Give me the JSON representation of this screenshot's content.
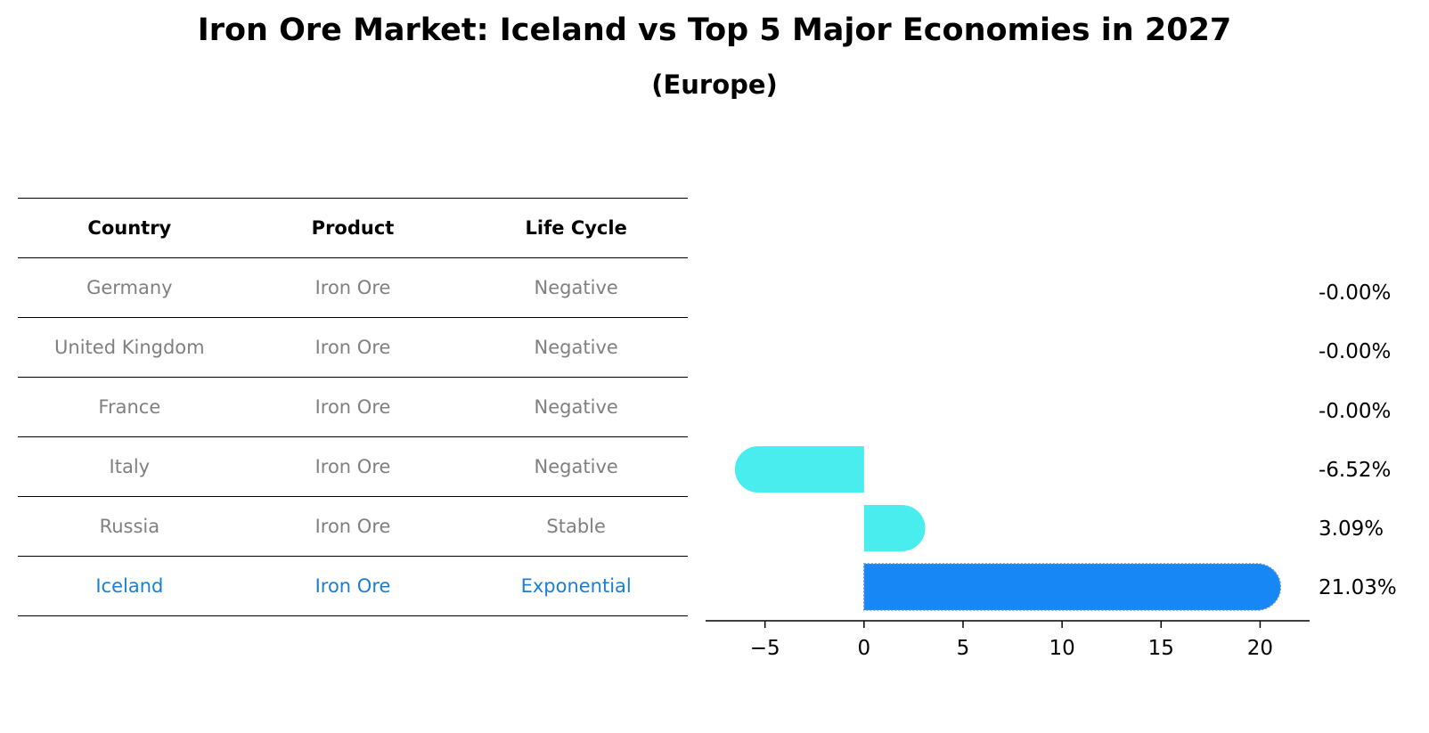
{
  "title": "Iron Ore Market: Iceland vs Top 5 Major Economies in 2027",
  "subtitle": "(Europe)",
  "table": {
    "headers": [
      "Country",
      "Product",
      "Life Cycle"
    ],
    "rows": [
      {
        "country": "Germany",
        "product": "Iron Ore",
        "life_cycle": "Negative"
      },
      {
        "country": "United Kingdom",
        "product": "Iron Ore",
        "life_cycle": "Negative"
      },
      {
        "country": "France",
        "product": "Iron Ore",
        "life_cycle": "Negative"
      },
      {
        "country": "Italy",
        "product": "Iron Ore",
        "life_cycle": "Negative"
      },
      {
        "country": "Russia",
        "product": "Iron Ore",
        "life_cycle": "Stable"
      },
      {
        "country": "Iceland",
        "product": "Iron Ore",
        "life_cycle": "Exponential"
      }
    ],
    "highlight_row": 5,
    "text_color": "#808080",
    "highlight_color": "#1a7fd4"
  },
  "chart_data": {
    "type": "bar",
    "orientation": "horizontal",
    "categories": [
      "Germany",
      "United Kingdom",
      "France",
      "Italy",
      "Russia",
      "Iceland"
    ],
    "values": [
      -0.0,
      -0.0,
      -0.0,
      -6.52,
      3.09,
      21.03
    ],
    "value_labels": [
      "-0.00%",
      "-0.00%",
      "-0.00%",
      "-6.52%",
      "3.09%",
      "21.03%"
    ],
    "xlim": [
      -8,
      22.5
    ],
    "xticks": [
      -5,
      0,
      5,
      10,
      15,
      20
    ],
    "xtick_labels": [
      "−5",
      "0",
      "5",
      "10",
      "15",
      "20"
    ],
    "bar_color": "#4aeded",
    "highlight_color": "#1787f5",
    "highlight_index": 5,
    "grid": false
  }
}
